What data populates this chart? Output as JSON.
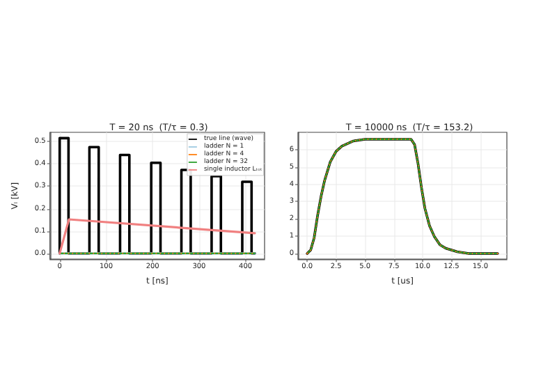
{
  "chart_data": [
    {
      "type": "line",
      "title": "T = 20 ns  (T/τ = 0.3)",
      "xlabel": "t [ns]",
      "ylabel": "Vₗ [kV]",
      "xlim": [
        -21,
        441
      ],
      "xticks": [
        0,
        100,
        200,
        300,
        400
      ],
      "ylim": [
        -0.026,
        0.541
      ],
      "yticks": [
        {
          "value": 0,
          "label": "0.0"
        },
        0.1,
        0.2,
        0.3,
        0.4,
        0.5
      ],
      "grid": true,
      "legend": "top right",
      "marker": "none",
      "series": [
        {
          "name": "true line (wave)",
          "color": "#000000",
          "line_style": "solid",
          "x": [
            0,
            0,
            19,
            19,
            64,
            64,
            84,
            84,
            130,
            130,
            150,
            150,
            197,
            197,
            217,
            217,
            262,
            262,
            282,
            282,
            327,
            327,
            347,
            347,
            393,
            393,
            413,
            413,
            420
          ],
          "values": [
            0,
            0.515,
            0.515,
            0,
            0,
            0.475,
            0.475,
            0,
            0,
            0.44,
            0.44,
            0,
            0,
            0.405,
            0.405,
            0,
            0,
            0.373,
            0.373,
            0,
            0,
            0.345,
            0.345,
            0,
            0,
            0.32,
            0.32,
            0,
            0
          ]
        },
        {
          "name": "ladder N = 1",
          "color": "#9ecae1",
          "line_style": "solid",
          "x": [
            0,
            420
          ],
          "values": [
            0,
            0
          ]
        },
        {
          "name": "ladder N = 4",
          "color": "#ff7f0e",
          "line_style": "dashed",
          "x": [
            0,
            420
          ],
          "values": [
            0,
            0
          ]
        },
        {
          "name": "ladder N = 32",
          "color": "#2ca02c",
          "line_style": "dashed",
          "x": [
            0,
            420
          ],
          "values": [
            0,
            0
          ]
        },
        {
          "name": "single inductor Lₜₒₜ",
          "color": "#f08080",
          "line_style": "solid",
          "x": [
            0,
            20,
            420
          ],
          "values": [
            0,
            0.152,
            0.09
          ]
        }
      ]
    },
    {
      "type": "line",
      "title": "T = 10000 ns  (T/τ = 153.2)",
      "xlabel": "t [us]",
      "xlim": [
        -0.8,
        17.3
      ],
      "xticks": [
        {
          "value": 0,
          "label": "0.0"
        },
        2.5,
        {
          "value": 5,
          "label": "5.0"
        },
        7.5,
        {
          "value": 10,
          "label": "10.0"
        },
        12.5,
        {
          "value": 15,
          "label": "15.0"
        }
      ],
      "ylim": [
        -0.33,
        7.0
      ],
      "yticks": [
        0,
        1,
        2,
        3,
        4,
        5,
        6
      ],
      "grid": true,
      "legend": false,
      "marker": "none",
      "series": [
        {
          "color": "#000000",
          "line_style": "solid",
          "x": [
            0,
            0.3,
            0.6,
            0.9,
            1.2,
            1.5,
            2,
            2.5,
            3,
            4,
            5,
            6,
            9,
            9.3,
            9.6,
            9.9,
            10.2,
            10.6,
            11,
            11.5,
            12,
            13,
            14,
            16.5
          ],
          "values": [
            0,
            0.2,
            0.9,
            2.2,
            3.3,
            4.2,
            5.3,
            5.9,
            6.2,
            6.5,
            6.6,
            6.6,
            6.6,
            6.3,
            5.2,
            3.8,
            2.6,
            1.6,
            1.0,
            0.5,
            0.3,
            0.1,
            0.0,
            0.0
          ]
        },
        {
          "color": "#ff7f0e",
          "line_style": "dashed",
          "x": [
            0,
            0.3,
            0.6,
            0.9,
            1.2,
            1.5,
            2,
            2.5,
            3,
            4,
            5,
            6,
            9,
            9.3,
            9.6,
            9.9,
            10.2,
            10.6,
            11,
            11.5,
            12,
            13,
            14,
            16.5
          ],
          "values": [
            0,
            0.2,
            0.9,
            2.2,
            3.3,
            4.2,
            5.3,
            5.9,
            6.2,
            6.5,
            6.6,
            6.6,
            6.6,
            6.3,
            5.2,
            3.8,
            2.6,
            1.6,
            1.0,
            0.5,
            0.3,
            0.1,
            0.0,
            0.0
          ]
        },
        {
          "color": "#2ca02c",
          "line_style": "dashed",
          "x": [
            0,
            0.3,
            0.6,
            0.9,
            1.2,
            1.5,
            2,
            2.5,
            3,
            4,
            5,
            6,
            9,
            9.3,
            9.6,
            9.9,
            10.2,
            10.6,
            11,
            11.5,
            12,
            13,
            14,
            16.5
          ],
          "values": [
            0,
            0.2,
            0.9,
            2.2,
            3.3,
            4.2,
            5.3,
            5.9,
            6.2,
            6.5,
            6.6,
            6.6,
            6.6,
            6.3,
            5.2,
            3.8,
            2.6,
            1.6,
            1.0,
            0.5,
            0.3,
            0.1,
            0.0,
            0.0
          ]
        }
      ]
    }
  ]
}
